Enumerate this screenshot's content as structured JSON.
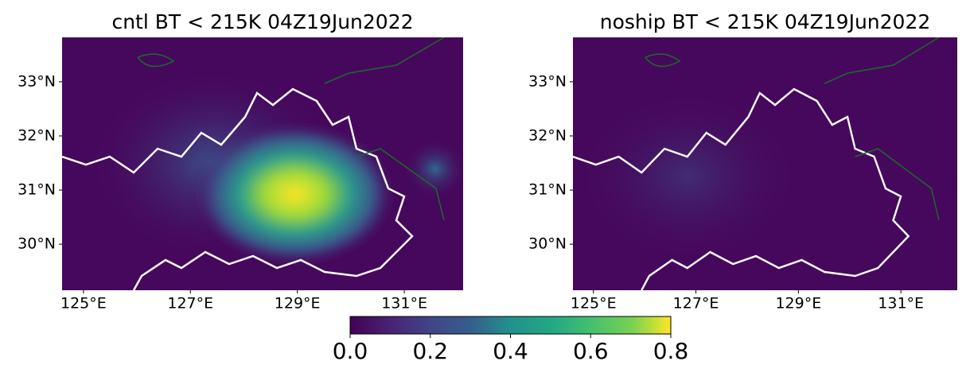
{
  "panels": [
    {
      "title": "cntl BT < 215K 04Z19Jun2022",
      "xlim": [
        124.6,
        132.1
      ],
      "ylim": [
        29.15,
        33.82
      ],
      "xticks": [
        {
          "value": 125,
          "label": "125°E"
        },
        {
          "value": 127,
          "label": "127°E"
        },
        {
          "value": 129,
          "label": "129°E"
        },
        {
          "value": 131,
          "label": "131°E"
        }
      ],
      "yticks": [
        {
          "value": 30,
          "label": "30°N"
        },
        {
          "value": 31,
          "label": "31°N"
        },
        {
          "value": 32,
          "label": "32°N"
        },
        {
          "value": 33,
          "label": "33°N"
        }
      ]
    },
    {
      "title": "noship BT < 215K 04Z19Jun2022",
      "xlim": [
        124.6,
        132.1
      ],
      "ylim": [
        29.15,
        33.82
      ],
      "xticks": [
        {
          "value": 125,
          "label": "125°E"
        },
        {
          "value": 127,
          "label": "127°E"
        },
        {
          "value": 129,
          "label": "129°E"
        },
        {
          "value": 131,
          "label": "131°E"
        }
      ],
      "yticks": [
        {
          "value": 30,
          "label": "30°N"
        },
        {
          "value": 31,
          "label": "31°N"
        },
        {
          "value": 32,
          "label": "32°N"
        },
        {
          "value": 33,
          "label": "33°N"
        }
      ]
    }
  ],
  "colorbar": {
    "lim": [
      0,
      0.8
    ],
    "ticks": [
      {
        "value": 0,
        "label": "0.0"
      },
      {
        "value": 0.2,
        "label": "0.2"
      },
      {
        "value": 0.4,
        "label": "0.4"
      },
      {
        "value": 0.6,
        "label": "0.6"
      },
      {
        "value": 0.8,
        "label": "0.8"
      }
    ]
  }
}
